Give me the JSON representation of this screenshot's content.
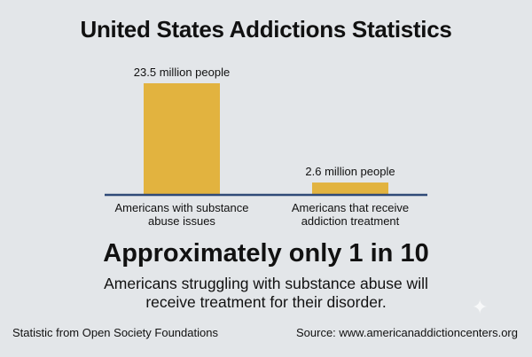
{
  "title": "United States Addictions Statistics",
  "chart_data": {
    "type": "bar",
    "categories": [
      "Americans with substance abuse issues",
      "Americans that receive addiction treatment"
    ],
    "category_lines": [
      [
        "Americans with substance",
        "abuse issues"
      ],
      [
        "Americans that receive",
        "addiction treatment"
      ]
    ],
    "values": [
      23.5,
      2.6
    ],
    "data_labels": [
      "23.5 million people",
      "2.6 million people"
    ],
    "unit": "million people",
    "ylim": [
      0,
      23.5
    ],
    "bar_color": "#e2b33f",
    "axis_color": "#2f4a78",
    "grid": false
  },
  "headline": "Approximately only 1 in 10",
  "subtext": "Americans struggling with substance abuse will receive treatment for their disorder.",
  "footer": {
    "left": "Statistic from Open Society Foundations",
    "right": "Source: www.americanaddictioncenters.org"
  }
}
